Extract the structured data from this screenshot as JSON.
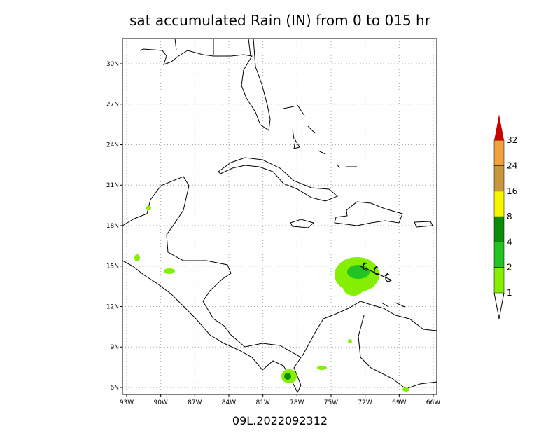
{
  "title": "sat accumulated Rain (IN) from 0 to 015 hr",
  "footer": "09L.2022092312",
  "map": {
    "lon_range": [
      -93.37,
      -65.69
    ],
    "lat_range": [
      5.48,
      31.87
    ],
    "lon_ticks": [
      {
        "value": -93,
        "label": "93W"
      },
      {
        "value": -90,
        "label": "90W"
      },
      {
        "value": -87,
        "label": "87W"
      },
      {
        "value": -84,
        "label": "84W"
      },
      {
        "value": -81,
        "label": "81W"
      },
      {
        "value": -78,
        "label": "78W"
      },
      {
        "value": -75,
        "label": "75W"
      },
      {
        "value": -72,
        "label": "72W"
      },
      {
        "value": -69,
        "label": "69W"
      },
      {
        "value": -66,
        "label": "66W"
      }
    ],
    "lat_ticks": [
      {
        "value": 6,
        "label": "6N"
      },
      {
        "value": 9,
        "label": "9N"
      },
      {
        "value": 12,
        "label": "12N"
      },
      {
        "value": 15,
        "label": "15N"
      },
      {
        "value": 18,
        "label": "18N"
      },
      {
        "value": 21,
        "label": "21N"
      },
      {
        "value": 24,
        "label": "24N"
      },
      {
        "value": 27,
        "label": "27N"
      },
      {
        "value": 30,
        "label": "30N"
      }
    ],
    "grid": true
  },
  "colorbar": {
    "levels": [
      1,
      2,
      4,
      8,
      16,
      24,
      32
    ],
    "colors": [
      "#84f000",
      "#22c322",
      "#0a8c0a",
      "#f5f500",
      "#c8963c",
      "#f0a03c",
      "#c80000"
    ]
  }
}
